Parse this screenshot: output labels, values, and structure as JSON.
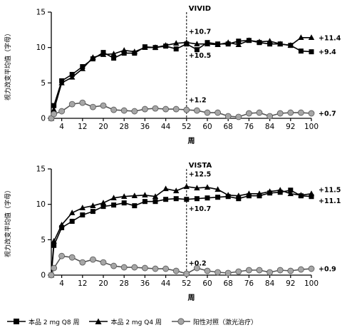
{
  "chart_data": [
    {
      "type": "line",
      "title": "VIVID",
      "xlabel": "周",
      "ylabel": "视力改变平均值（字母）",
      "xlim": [
        0,
        100
      ],
      "ylim": [
        0,
        15
      ],
      "xticks": [
        4,
        12,
        20,
        28,
        36,
        44,
        52,
        60,
        68,
        76,
        84,
        92,
        100
      ],
      "yticks": [
        0,
        5,
        10,
        15
      ],
      "reference_line_x": 52,
      "series": [
        {
          "name": "本品 2 mg Q8 周",
          "marker": "square",
          "x": [
            0,
            1,
            4,
            8,
            12,
            16,
            20,
            24,
            28,
            32,
            36,
            40,
            44,
            48,
            52,
            56,
            60,
            64,
            68,
            72,
            76,
            80,
            84,
            88,
            92,
            96,
            100
          ],
          "y": [
            0,
            1.8,
            5.3,
            6.2,
            7.3,
            8.4,
            9.3,
            8.5,
            9.2,
            9.2,
            10.1,
            10.0,
            10.2,
            9.8,
            10.5,
            9.7,
            10.7,
            10.5,
            10.5,
            10.9,
            11.0,
            10.7,
            10.5,
            10.5,
            10.3,
            9.5,
            9.4
          ]
        },
        {
          "name": "本品 2 mg Q4 周",
          "marker": "triangle",
          "x": [
            0,
            1,
            4,
            8,
            12,
            16,
            20,
            24,
            28,
            32,
            36,
            40,
            44,
            48,
            52,
            56,
            60,
            64,
            68,
            72,
            76,
            80,
            84,
            88,
            92,
            96,
            100
          ],
          "y": [
            0,
            1.2,
            5.0,
            5.8,
            7.0,
            8.6,
            9.0,
            9.1,
            9.6,
            9.4,
            10.0,
            10.0,
            10.3,
            10.6,
            10.7,
            10.5,
            10.5,
            10.4,
            10.7,
            10.4,
            11.0,
            10.8,
            10.9,
            10.5,
            10.3,
            11.4,
            11.4
          ]
        },
        {
          "name": "阳性对照（激光治疗）",
          "marker": "circle",
          "x": [
            0,
            1,
            4,
            8,
            12,
            16,
            20,
            24,
            28,
            32,
            36,
            40,
            44,
            48,
            52,
            56,
            60,
            64,
            68,
            72,
            76,
            80,
            84,
            88,
            92,
            96,
            100
          ],
          "y": [
            0,
            0.6,
            1.0,
            2.0,
            2.2,
            1.6,
            1.8,
            1.2,
            1.1,
            1.0,
            1.3,
            1.4,
            1.3,
            1.3,
            1.2,
            1.1,
            0.8,
            0.8,
            0.3,
            0.2,
            0.7,
            0.8,
            0.3,
            0.7,
            0.8,
            0.8,
            0.7
          ]
        }
      ],
      "annotations": [
        {
          "text": "+10.7",
          "x": 52,
          "y": 12.3
        },
        {
          "text": "+10.5",
          "x": 52,
          "y": 8.9
        },
        {
          "text": "+1.2",
          "x": 52,
          "y": 2.6
        },
        {
          "text": "+11.4",
          "x": 100,
          "y": 11.4
        },
        {
          "text": "+9.4",
          "x": 100,
          "y": 9.4
        },
        {
          "text": "+0.7",
          "x": 100,
          "y": 0.7
        }
      ]
    },
    {
      "type": "line",
      "title": "VISTA",
      "xlabel": "周",
      "ylabel": "视力改变平均值（字母）",
      "xlim": [
        0,
        100
      ],
      "ylim": [
        0,
        15
      ],
      "xticks": [
        4,
        12,
        20,
        28,
        36,
        44,
        52,
        60,
        68,
        76,
        84,
        92,
        100
      ],
      "yticks": [
        0,
        5,
        10,
        15
      ],
      "reference_line_x": 52,
      "series": [
        {
          "name": "本品 2 mg Q8 周",
          "marker": "square",
          "x": [
            0,
            1,
            4,
            8,
            12,
            16,
            20,
            24,
            28,
            32,
            36,
            40,
            44,
            48,
            52,
            56,
            60,
            64,
            68,
            72,
            76,
            80,
            84,
            88,
            92,
            96,
            100
          ],
          "y": [
            0,
            4.2,
            6.7,
            7.6,
            8.5,
            9.0,
            9.7,
            9.9,
            10.2,
            9.8,
            10.4,
            10.4,
            10.7,
            10.8,
            10.7,
            10.8,
            10.9,
            11.0,
            11.1,
            10.8,
            11.2,
            11.2,
            11.6,
            11.7,
            12.0,
            11.2,
            11.1
          ]
        },
        {
          "name": "本品 2 mg Q4 周",
          "marker": "triangle",
          "x": [
            0,
            1,
            4,
            8,
            12,
            16,
            20,
            24,
            28,
            32,
            36,
            40,
            44,
            48,
            52,
            56,
            60,
            64,
            68,
            72,
            76,
            80,
            84,
            88,
            92,
            96,
            100
          ],
          "y": [
            0,
            4.8,
            7.1,
            8.8,
            9.5,
            9.8,
            10.2,
            10.9,
            11.1,
            11.2,
            11.3,
            11.1,
            12.2,
            11.9,
            12.5,
            12.3,
            12.4,
            12.1,
            11.3,
            11.2,
            11.5,
            11.5,
            11.8,
            12.0,
            11.5,
            11.3,
            11.5
          ]
        },
        {
          "name": "阳性对照（激光治疗）",
          "marker": "circle",
          "x": [
            0,
            1,
            4,
            8,
            12,
            16,
            20,
            24,
            28,
            32,
            36,
            40,
            44,
            48,
            52,
            56,
            60,
            64,
            68,
            72,
            76,
            80,
            84,
            88,
            92,
            96,
            100
          ],
          "y": [
            0,
            1.0,
            2.7,
            2.5,
            1.8,
            2.2,
            1.8,
            1.3,
            1.1,
            1.1,
            1.0,
            0.9,
            0.9,
            0.6,
            0.2,
            1.0,
            0.6,
            0.4,
            0.3,
            0.5,
            0.7,
            0.7,
            0.4,
            0.7,
            0.6,
            0.8,
            0.9
          ]
        }
      ],
      "annotations": [
        {
          "text": "+12.5",
          "x": 52,
          "y": 14.3
        },
        {
          "text": "+10.7",
          "x": 52,
          "y": 9.4
        },
        {
          "text": "+0.2",
          "x": 52,
          "y": 1.7
        },
        {
          "text": "+11.5",
          "x": 100,
          "y": 12.1
        },
        {
          "text": "+11.1",
          "x": 100,
          "y": 10.5
        },
        {
          "text": "+0.9",
          "x": 100,
          "y": 0.9
        }
      ]
    }
  ],
  "legend": [
    {
      "label": "本品 2 mg Q8 周",
      "marker": "square"
    },
    {
      "label": "本品 2 mg Q4 周",
      "marker": "triangle"
    },
    {
      "label": "阳性对照（激光治疗）",
      "marker": "circle"
    }
  ],
  "colors": {
    "line": "#000000",
    "control_fill": "#a6a6a6",
    "control_stroke": "#555555"
  }
}
